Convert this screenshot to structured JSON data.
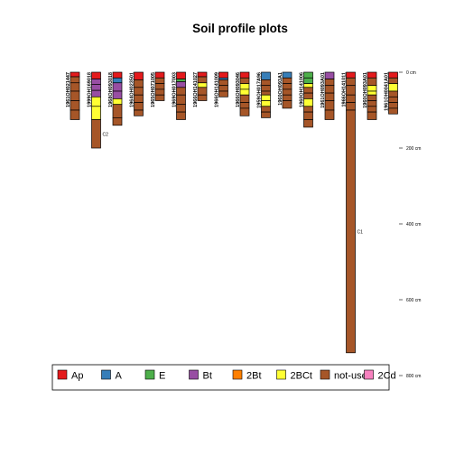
{
  "chart_data": {
    "type": "soil-profile",
    "title": "Soil profile plots",
    "depth_unit": "cm",
    "depth_ticks": [
      0,
      200,
      400,
      600,
      800
    ],
    "ylim": [
      0,
      800
    ],
    "legend": {
      "placement": "bottom",
      "entries": [
        {
          "name": "Ap",
          "color": "#e41a1c"
        },
        {
          "name": "A",
          "color": "#377eb8"
        },
        {
          "name": "E",
          "color": "#4daf4a"
        },
        {
          "name": "Bt",
          "color": "#984ea3"
        },
        {
          "name": "2Bt",
          "color": "#ff7f00"
        },
        {
          "name": "2BCt",
          "color": "#ffff33"
        },
        {
          "name": "not-used",
          "color": "#a65628"
        },
        {
          "name": "2Cd",
          "color": "#f781bf"
        }
      ]
    },
    "profiles": [
      {
        "id": "1961OH021447",
        "horizons": [
          {
            "d": 12,
            "c": "Ap"
          },
          {
            "d": 28,
            "c": "not-used"
          },
          {
            "d": 50,
            "c": "not-used"
          },
          {
            "d": 75,
            "c": "not-used"
          },
          {
            "d": 100,
            "c": "not-used"
          },
          {
            "d": 125,
            "c": "not-used"
          }
        ]
      },
      {
        "id": "1999OH169018",
        "horizons": [
          {
            "d": 18,
            "c": "Ap"
          },
          {
            "d": 32,
            "c": "Bt"
          },
          {
            "d": 48,
            "c": "Bt"
          },
          {
            "d": 65,
            "c": "Bt"
          },
          {
            "d": 90,
            "c": "2BCt"
          },
          {
            "d": 125,
            "c": "2BCt"
          },
          {
            "d": 200,
            "c": "not-used",
            "label": "C2"
          }
        ]
      },
      {
        "id": "1968OH093018",
        "horizons": [
          {
            "d": 15,
            "c": "Ap"
          },
          {
            "d": 28,
            "c": "A"
          },
          {
            "d": 50,
            "c": "Bt"
          },
          {
            "d": 70,
            "c": "Bt"
          },
          {
            "d": 85,
            "c": "2BCt"
          },
          {
            "d": 120,
            "c": "not-used"
          },
          {
            "d": 140,
            "c": "not-used"
          }
        ]
      },
      {
        "id": "1964OH023501",
        "horizons": [
          {
            "d": 20,
            "c": "Ap"
          },
          {
            "d": 40,
            "c": "not-used"
          },
          {
            "d": 60,
            "c": "not-used"
          },
          {
            "d": 80,
            "c": "not-used"
          },
          {
            "d": 100,
            "c": "not-used"
          },
          {
            "d": 115,
            "c": "not-used"
          }
        ]
      },
      {
        "id": "1965OH071005",
        "horizons": [
          {
            "d": 15,
            "c": "Ap"
          },
          {
            "d": 30,
            "c": "not-used"
          },
          {
            "d": 45,
            "c": "not-used"
          },
          {
            "d": 60,
            "c": "not-used"
          },
          {
            "d": 75,
            "c": "not-used"
          }
        ]
      },
      {
        "id": "1969OH017003",
        "horizons": [
          {
            "d": 18,
            "c": "Ap"
          },
          {
            "d": 25,
            "c": "E"
          },
          {
            "d": 40,
            "c": "Bt"
          },
          {
            "d": 60,
            "c": "not-used"
          },
          {
            "d": 85,
            "c": "not-used"
          },
          {
            "d": 105,
            "c": "not-used"
          },
          {
            "d": 125,
            "c": "not-used"
          }
        ]
      },
      {
        "id": "1966OH141027",
        "horizons": [
          {
            "d": 12,
            "c": "Ap"
          },
          {
            "d": 28,
            "c": "not-used"
          },
          {
            "d": 40,
            "c": "2BCt"
          },
          {
            "d": 60,
            "c": "not-used"
          },
          {
            "d": 75,
            "c": "not-used"
          }
        ]
      },
      {
        "id": "1966OH141009",
        "horizons": [
          {
            "d": 15,
            "c": "Ap"
          },
          {
            "d": 20,
            "c": "A"
          },
          {
            "d": 35,
            "c": "not-used"
          },
          {
            "d": 50,
            "c": "not-used"
          },
          {
            "d": 65,
            "c": "not-used"
          }
        ]
      },
      {
        "id": "1966OH093046",
        "horizons": [
          {
            "d": 15,
            "c": "Ap"
          },
          {
            "d": 30,
            "c": "not-used"
          },
          {
            "d": 45,
            "c": "2BCt"
          },
          {
            "d": 60,
            "c": "2BCt"
          },
          {
            "d": 80,
            "c": "not-used"
          },
          {
            "d": 95,
            "c": "not-used"
          },
          {
            "d": 115,
            "c": "not-used"
          }
        ]
      },
      {
        "id": "1959OH017A96",
        "horizons": [
          {
            "d": 20,
            "c": "A"
          },
          {
            "d": 35,
            "c": "not-used"
          },
          {
            "d": 50,
            "c": "not-used"
          },
          {
            "d": 60,
            "c": "not-used"
          },
          {
            "d": 75,
            "c": "2BCt"
          },
          {
            "d": 90,
            "c": "2BCt"
          },
          {
            "d": 105,
            "c": "not-used"
          },
          {
            "d": 120,
            "c": "not-used"
          }
        ]
      },
      {
        "id": "1960OH093A1",
        "horizons": [
          {
            "d": 15,
            "c": "A"
          },
          {
            "d": 30,
            "c": "not-used"
          },
          {
            "d": 45,
            "c": "not-used"
          },
          {
            "d": 60,
            "c": "not-used"
          },
          {
            "d": 75,
            "c": "not-used"
          },
          {
            "d": 95,
            "c": "not-used"
          }
        ]
      },
      {
        "id": "1960OH141006",
        "horizons": [
          {
            "d": 15,
            "c": "E"
          },
          {
            "d": 30,
            "c": "E"
          },
          {
            "d": 40,
            "c": "2BCt"
          },
          {
            "d": 55,
            "c": "not-used"
          },
          {
            "d": 70,
            "c": "not-used"
          },
          {
            "d": 90,
            "c": "2BCt"
          },
          {
            "d": 105,
            "c": "not-used"
          },
          {
            "d": 125,
            "c": "not-used"
          },
          {
            "d": 145,
            "c": "not-used"
          }
        ]
      },
      {
        "id": "1961OH093A01",
        "horizons": [
          {
            "d": 18,
            "c": "Bt"
          },
          {
            "d": 35,
            "c": "not-used"
          },
          {
            "d": 55,
            "c": "not-used"
          },
          {
            "d": 75,
            "c": "not-used"
          },
          {
            "d": 100,
            "c": "not-used"
          },
          {
            "d": 125,
            "c": "not-used"
          }
        ]
      },
      {
        "id": "1966OH141011",
        "horizons": [
          {
            "d": 15,
            "c": "Ap"
          },
          {
            "d": 35,
            "c": "not-used"
          },
          {
            "d": 60,
            "c": "not-used"
          },
          {
            "d": 80,
            "c": "not-used"
          },
          {
            "d": 100,
            "c": "not-used"
          },
          {
            "d": 740,
            "c": "not-used",
            "label": "C1"
          }
        ]
      },
      {
        "id": "1960OH093A01",
        "horizons": [
          {
            "d": 15,
            "c": "Ap"
          },
          {
            "d": 35,
            "c": "not-used"
          },
          {
            "d": 50,
            "c": "2BCt"
          },
          {
            "d": 60,
            "c": "2BCt"
          },
          {
            "d": 75,
            "c": "not-used"
          },
          {
            "d": 90,
            "c": "not-used"
          },
          {
            "d": 105,
            "c": "not-used"
          },
          {
            "d": 125,
            "c": "not-used"
          }
        ]
      },
      {
        "id": "1961OH0041A01",
        "horizons": [
          {
            "d": 15,
            "c": "Ap"
          },
          {
            "d": 30,
            "c": "not-used"
          },
          {
            "d": 50,
            "c": "2BCt"
          },
          {
            "d": 65,
            "c": "not-used"
          },
          {
            "d": 80,
            "c": "not-used"
          },
          {
            "d": 95,
            "c": "not-used"
          },
          {
            "d": 110,
            "c": "not-used"
          }
        ]
      }
    ]
  }
}
